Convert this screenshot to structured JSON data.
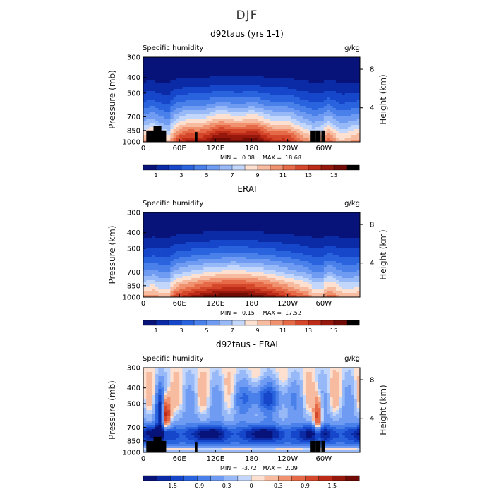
{
  "figure_title": "DJF",
  "chart_data": [
    {
      "type": "heatmap",
      "title": "d92taus (yrs 1-1)",
      "left_label": "Specific humidity",
      "units": "g/kg",
      "ylabel": "Pressure (mb)",
      "ylabel_right": "Height (km)",
      "x_ticks": [
        "0",
        "60E",
        "120E",
        "180",
        "120W",
        "60W"
      ],
      "y_ticks": [
        "300",
        "400",
        "500",
        "700",
        "850",
        "1000"
      ],
      "height_ticks": [
        "8",
        "4"
      ],
      "min_label": "MIN =",
      "min_value": "0.08",
      "max_label": "MAX =",
      "max_value": "18.68",
      "colorbar_labels": [
        "1",
        "3",
        "5",
        "7",
        "9",
        "11",
        "13",
        "15"
      ],
      "levels": [
        1,
        2,
        3,
        4,
        5,
        6,
        7,
        8,
        9,
        10,
        11,
        12,
        13,
        14,
        15,
        16
      ],
      "terrain": true
    },
    {
      "type": "heatmap",
      "title": "ERAI",
      "left_label": "Specific humidity",
      "units": "g/kg",
      "ylabel": "Pressure (km)",
      "ylabel_right": "Height (km)",
      "x_ticks": [
        "0",
        "60E",
        "120E",
        "180",
        "120W",
        "60W"
      ],
      "y_ticks": [
        "300",
        "400",
        "500",
        "700",
        "850",
        "1000"
      ],
      "height_ticks": [
        "8",
        "4"
      ],
      "min_label": "MIN =",
      "min_value": "0.15",
      "max_label": "MAX =",
      "max_value": "17.52",
      "colorbar_labels": [
        "1",
        "3",
        "5",
        "7",
        "9",
        "11",
        "13",
        "15"
      ],
      "levels": [
        1,
        2,
        3,
        4,
        5,
        6,
        7,
        8,
        9,
        10,
        11,
        12,
        13,
        14,
        15,
        16
      ],
      "terrain": false
    },
    {
      "type": "heatmap",
      "title": "d92taus - ERAI",
      "left_label": "Specific humidity",
      "units": "g/kg",
      "ylabel": "Pressure (mb)",
      "ylabel_right": "Height (km)",
      "x_ticks": [
        "0",
        "60E",
        "120E",
        "180",
        "120W",
        "60W"
      ],
      "y_ticks": [
        "300",
        "400",
        "500",
        "700",
        "850",
        "1000"
      ],
      "height_ticks": [
        "8",
        "4"
      ],
      "min_label": "MIN =",
      "min_value": "-3.72",
      "max_label": "MAX =",
      "max_value": "2.09",
      "colorbar_labels": [
        "−1.5",
        "−0.9",
        "−0.3",
        "0",
        "0.3",
        "0.9",
        "1.5"
      ],
      "levels": [
        -1.8,
        -1.5,
        -1.2,
        -0.9,
        -0.6,
        -0.3,
        -0.1,
        0,
        0.1,
        0.3,
        0.6,
        0.9,
        1.2,
        1.5,
        1.8
      ],
      "terrain": true
    }
  ],
  "colors": {
    "palette": [
      "#08137a",
      "#0a2aa6",
      "#1646c9",
      "#2a63de",
      "#4a80ea",
      "#6f9cf2",
      "#98b9f7",
      "#c3d6fb",
      "#fde0d0",
      "#f7bba0",
      "#f0916f",
      "#e66a47",
      "#d4472a",
      "#bb2b17",
      "#96180c",
      "#700b05"
    ],
    "terrain": "#000000"
  }
}
